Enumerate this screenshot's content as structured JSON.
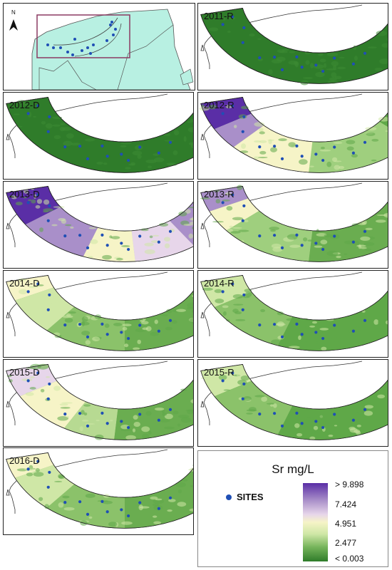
{
  "overview": {
    "north_label": "N",
    "north_icon": "north-arrow-icon",
    "land_color": "#b8f0e2",
    "inset_color": "#8b3a62"
  },
  "panels": [
    {
      "label": "2011-R",
      "scheme": "flat_green"
    },
    {
      "label": "2012-D",
      "scheme": "flat_green"
    },
    {
      "label": "2012-R",
      "scheme": "purple_west"
    },
    {
      "label": "2013-D",
      "scheme": "purple_heavy"
    },
    {
      "label": "2013-R",
      "scheme": "green_purple_west"
    },
    {
      "label": "2014-D",
      "scheme": "green_light"
    },
    {
      "label": "2014-R",
      "scheme": "green_mid"
    },
    {
      "label": "2015-D",
      "scheme": "green_light_purple"
    },
    {
      "label": "2015-R",
      "scheme": "green_mid"
    },
    {
      "label": "2016-D",
      "scheme": "green_light"
    }
  ],
  "legend": {
    "title": "Sr mg/L",
    "sites_label": "SITES",
    "sites_color": "#1f4fb5",
    "ticks": [
      "> 9.898",
      "7.424",
      "4.951",
      "2.477",
      "< 0.003"
    ],
    "colors": {
      "high": "#5a2ea6",
      "mid_high": "#a98fc9",
      "mid": "#f6f4c7",
      "mid_low": "#9fcf7e",
      "low": "#2f7c2a"
    }
  }
}
